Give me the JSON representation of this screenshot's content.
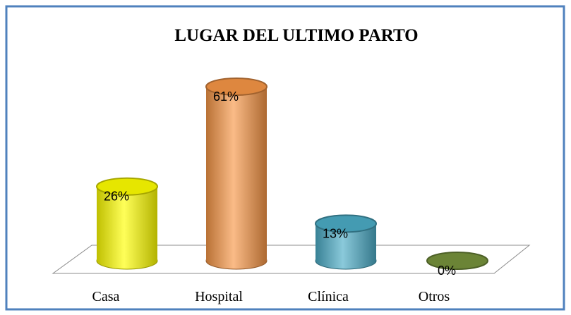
{
  "chart_data": {
    "type": "bar",
    "title": "LUGAR DEL ULTIMO PARTO",
    "categories": [
      "Casa",
      "Hospital",
      "Clínica",
      "Otros"
    ],
    "values": [
      26,
      61,
      13,
      0
    ],
    "value_labels": [
      "26%",
      "61%",
      "13%",
      "0%"
    ],
    "colors": [
      "#ffff00",
      "#f79646",
      "#4bacc6",
      "#77933c"
    ]
  }
}
